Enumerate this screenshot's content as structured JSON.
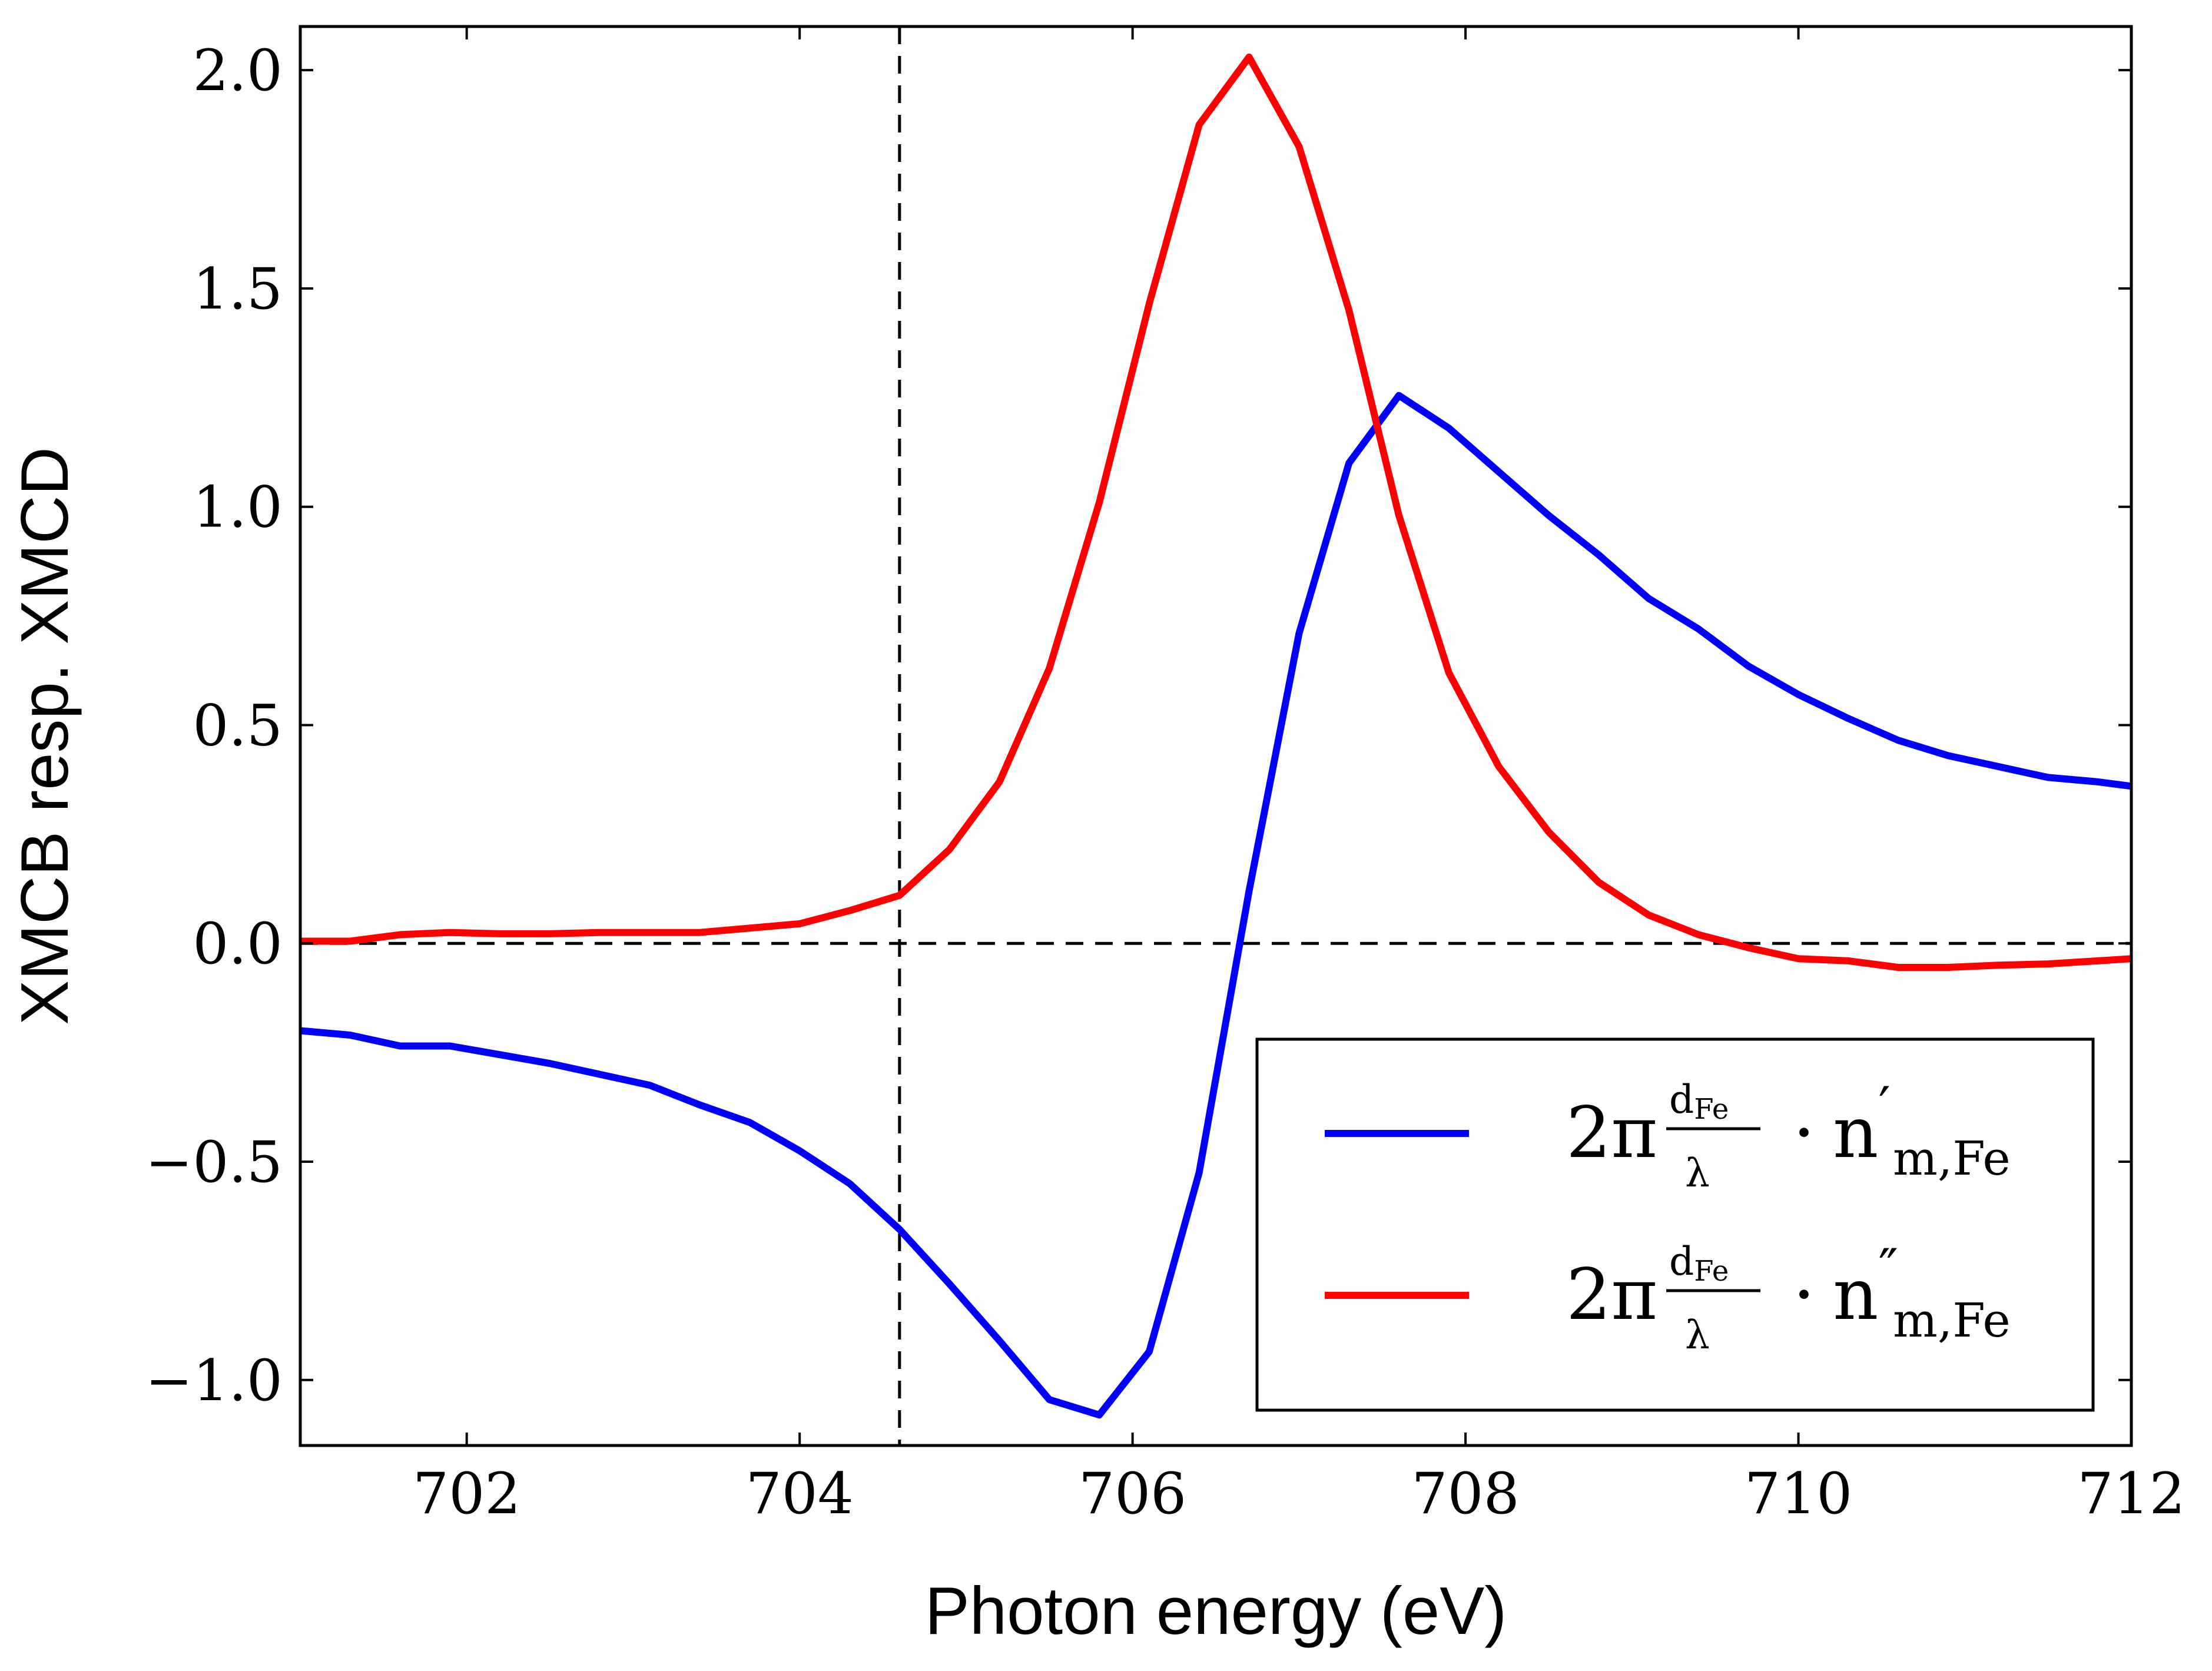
{
  "chart_data": {
    "type": "line",
    "title": "",
    "xlabel": "Photon energy (eV)",
    "ylabel": "XMCB resp. XMCD",
    "xlim": [
      701,
      712
    ],
    "ylim": [
      -1.15,
      2.1
    ],
    "xticks": [
      702,
      704,
      706,
      708,
      710,
      712
    ],
    "xtick_labels": [
      "702",
      "704",
      "706",
      "708",
      "710",
      "712"
    ],
    "yticks": [
      -1.0,
      -0.5,
      0.0,
      0.5,
      1.0,
      1.5,
      2.0
    ],
    "ytick_labels": [
      "−1.0",
      "−0.5",
      "0.0",
      "0.5",
      "1.0",
      "1.5",
      "2.0"
    ],
    "grid": false,
    "reference_lines": [
      {
        "orientation": "vertical",
        "x": 704.6,
        "style": "dashed",
        "color": "#000000"
      },
      {
        "orientation": "horizontal",
        "y": 0.0,
        "style": "dashed",
        "color": "#000000"
      }
    ],
    "legend": {
      "placement": "lower-right",
      "entries": [
        {
          "series": "n_prime",
          "prefix": "2π",
          "frac_num_main": "d",
          "frac_num_sub": "Fe",
          "frac_den": "λ",
          "dot": "·",
          "symbol": "n",
          "prime": "′",
          "subscript": "m,Fe"
        },
        {
          "series": "n_double_prime",
          "prefix": "2π",
          "frac_num_main": "d",
          "frac_num_sub": "Fe",
          "frac_den": "λ",
          "dot": "·",
          "symbol": "n",
          "prime": "″",
          "subscript": "m,Fe"
        }
      ]
    },
    "series": [
      {
        "id": "n_prime",
        "name": "2π dFe/λ · n′ m,Fe",
        "color": "#0000ff",
        "x": [
          701.0,
          701.3,
          701.6,
          701.9,
          702.2,
          702.5,
          702.8,
          703.1,
          703.4,
          703.7,
          704.0,
          704.3,
          704.6,
          704.9,
          705.2,
          705.5,
          705.8,
          706.1,
          706.4,
          706.7,
          707.0,
          707.3,
          707.6,
          707.9,
          708.2,
          708.5,
          708.8,
          709.1,
          709.4,
          709.7,
          710.0,
          710.3,
          710.6,
          710.9,
          711.2,
          711.5,
          711.8,
          712.0
        ],
        "values": [
          -0.2,
          -0.21,
          -0.235,
          -0.235,
          -0.255,
          -0.275,
          -0.3,
          -0.325,
          -0.37,
          -0.41,
          -0.475,
          -0.55,
          -0.655,
          -0.78,
          -0.91,
          -1.045,
          -1.08,
          -0.935,
          -0.525,
          0.12,
          0.71,
          1.1,
          1.255,
          1.18,
          1.08,
          0.98,
          0.89,
          0.79,
          0.72,
          0.635,
          0.57,
          0.515,
          0.465,
          0.43,
          0.405,
          0.38,
          0.37,
          0.36
        ]
      },
      {
        "id": "n_double_prime",
        "name": "2π dFe/λ · n″ m,Fe",
        "color": "#ff0000",
        "x": [
          701.0,
          701.3,
          701.6,
          701.9,
          702.2,
          702.5,
          702.8,
          703.1,
          703.4,
          703.7,
          704.0,
          704.3,
          704.6,
          704.9,
          705.2,
          705.5,
          705.8,
          706.1,
          706.4,
          706.7,
          707.0,
          707.3,
          707.6,
          707.9,
          708.2,
          708.5,
          708.8,
          709.1,
          709.4,
          709.7,
          710.0,
          710.3,
          710.6,
          710.9,
          711.2,
          711.5,
          711.8,
          712.0
        ],
        "values": [
          0.005,
          0.005,
          0.02,
          0.025,
          0.022,
          0.022,
          0.025,
          0.025,
          0.025,
          0.035,
          0.045,
          0.075,
          0.11,
          0.215,
          0.37,
          0.63,
          1.01,
          1.465,
          1.875,
          2.03,
          1.825,
          1.45,
          0.98,
          0.62,
          0.405,
          0.255,
          0.14,
          0.065,
          0.02,
          -0.01,
          -0.035,
          -0.04,
          -0.055,
          -0.055,
          -0.05,
          -0.047,
          -0.04,
          -0.035
        ]
      }
    ]
  }
}
